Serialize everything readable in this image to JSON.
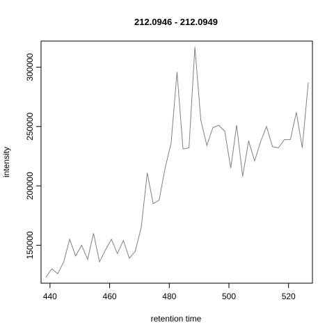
{
  "chart_data": {
    "type": "line",
    "title": "212.0946 - 212.0949",
    "xlabel": "retention time",
    "ylabel": "intensity",
    "xlim": [
      437,
      528
    ],
    "ylim": [
      118000,
      322000
    ],
    "x_ticks": [
      440,
      460,
      480,
      500,
      520
    ],
    "y_ticks": [
      150000,
      200000,
      250000,
      300000
    ],
    "grid": false,
    "line_color": "#808080",
    "series": [
      {
        "x": [
          438.6,
          440.6,
          442.6,
          444.6,
          446.6,
          448.6,
          450.6,
          452.6,
          454.6,
          456.6,
          458.6,
          460.6,
          462.6,
          464.6,
          466.6,
          468.6,
          470.6,
          472.6,
          474.6,
          476.6,
          478.6,
          480.6,
          482.6,
          484.6,
          486.6,
          488.6,
          490.6,
          492.6,
          494.6,
          496.6,
          498.6,
          500.6,
          502.6,
          504.6,
          506.6,
          508.6,
          510.6,
          512.6,
          514.6,
          516.6,
          518.6,
          520.6,
          522.6,
          524.6,
          526.6
        ],
        "y": [
          123000,
          130000,
          126000,
          136000,
          155000,
          141000,
          150000,
          138000,
          160000,
          136000,
          146000,
          155000,
          143000,
          154000,
          139000,
          145000,
          165000,
          211000,
          185000,
          188000,
          215000,
          236000,
          296000,
          231000,
          232000,
          317000,
          255000,
          234000,
          249000,
          251000,
          246000,
          215000,
          251000,
          208000,
          238000,
          221000,
          237000,
          250000,
          233000,
          232000,
          239000,
          239000,
          262000,
          232000,
          287000
        ]
      }
    ]
  }
}
